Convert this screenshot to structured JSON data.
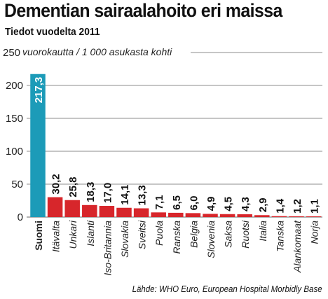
{
  "title": "Dementian sairaalahoito eri maissa",
  "subtitle": "Tiedot vuodelta 2011",
  "source": "Lähde: WHO Euro, European Hospital Morbidly Base",
  "colors": {
    "highlight": "#1c9bb8",
    "bars": "#d7262b",
    "grid": "#8e8e8e"
  },
  "chart_data": {
    "type": "bar",
    "ylabel": "vuorokautta / 1 000 asukasta kohti",
    "ylim": [
      0,
      250
    ],
    "yticks": [
      0,
      50,
      100,
      150,
      200,
      250
    ],
    "grid": true,
    "highlight_category": "Suomi",
    "categories": [
      "Suomi",
      "Itävalta",
      "Unkari",
      "Islanti",
      "Iso-Britannia",
      "Slovakia",
      "Sveitsi",
      "Puola",
      "Ranska",
      "Belgia",
      "Slovenia",
      "Saksa",
      "Ruotsi",
      "Italia",
      "Tanska",
      "Alankomaat",
      "Norja"
    ],
    "values": [
      217.3,
      30.2,
      25.8,
      18.3,
      17.0,
      14.1,
      13.3,
      7.1,
      6.5,
      6.0,
      4.9,
      4.5,
      4.3,
      2.9,
      1.4,
      1.2,
      1.1
    ],
    "value_labels": [
      "217,3",
      "30,2",
      "25,8",
      "18,3",
      "17,0",
      "14,1",
      "13,3",
      "7,1",
      "6,5",
      "6,0",
      "4,9",
      "4,5",
      "4,3",
      "2,9",
      "1,4",
      "1,2",
      "1,1"
    ]
  }
}
